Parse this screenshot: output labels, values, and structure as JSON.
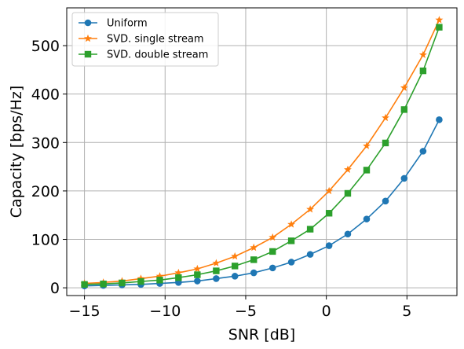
{
  "chart_data": {
    "type": "line",
    "xlabel": "SNR [dB]",
    "ylabel": "Capacity [bps/Hz]",
    "xlim": [
      -16.1,
      8.1
    ],
    "ylim": [
      -16,
      578
    ],
    "xticks": [
      -15,
      -10,
      -5,
      0,
      5
    ],
    "xtick_labels": [
      "−15",
      "−10",
      "−5",
      "0",
      "5"
    ],
    "yticks": [
      0,
      100,
      200,
      300,
      400,
      500
    ],
    "ytick_labels": [
      "0",
      "100",
      "200",
      "300",
      "400",
      "500"
    ],
    "grid": true,
    "legend_position": "top-left",
    "x": [
      -15,
      -13.83,
      -12.67,
      -11.5,
      -10.33,
      -9.17,
      -8,
      -6.83,
      -5.67,
      -4.5,
      -3.33,
      -2.17,
      -1,
      0.17,
      1.33,
      2.5,
      3.67,
      4.83,
      6,
      7
    ],
    "series": [
      {
        "name": "Uniform",
        "color": "#1f77b4",
        "marker": "circle",
        "values": [
          4,
          5,
          6,
          7,
          9,
          11,
          14,
          19,
          24,
          31,
          41,
          53,
          69,
          87,
          111,
          142,
          179,
          226,
          282,
          347
        ]
      },
      {
        "name": "SVD. single stream",
        "color": "#ff7f0e",
        "marker": "star",
        "values": [
          9,
          11,
          14,
          19,
          24,
          31,
          39,
          51,
          65,
          83,
          104,
          131,
          162,
          200,
          244,
          293,
          351,
          413,
          481,
          553
        ]
      },
      {
        "name": "SVD. double stream",
        "color": "#2ca02c",
        "marker": "square",
        "values": [
          7,
          8,
          10,
          13,
          16,
          21,
          27,
          35,
          45,
          58,
          75,
          97,
          121,
          154,
          195,
          243,
          299,
          368,
          448,
          538
        ]
      }
    ]
  }
}
